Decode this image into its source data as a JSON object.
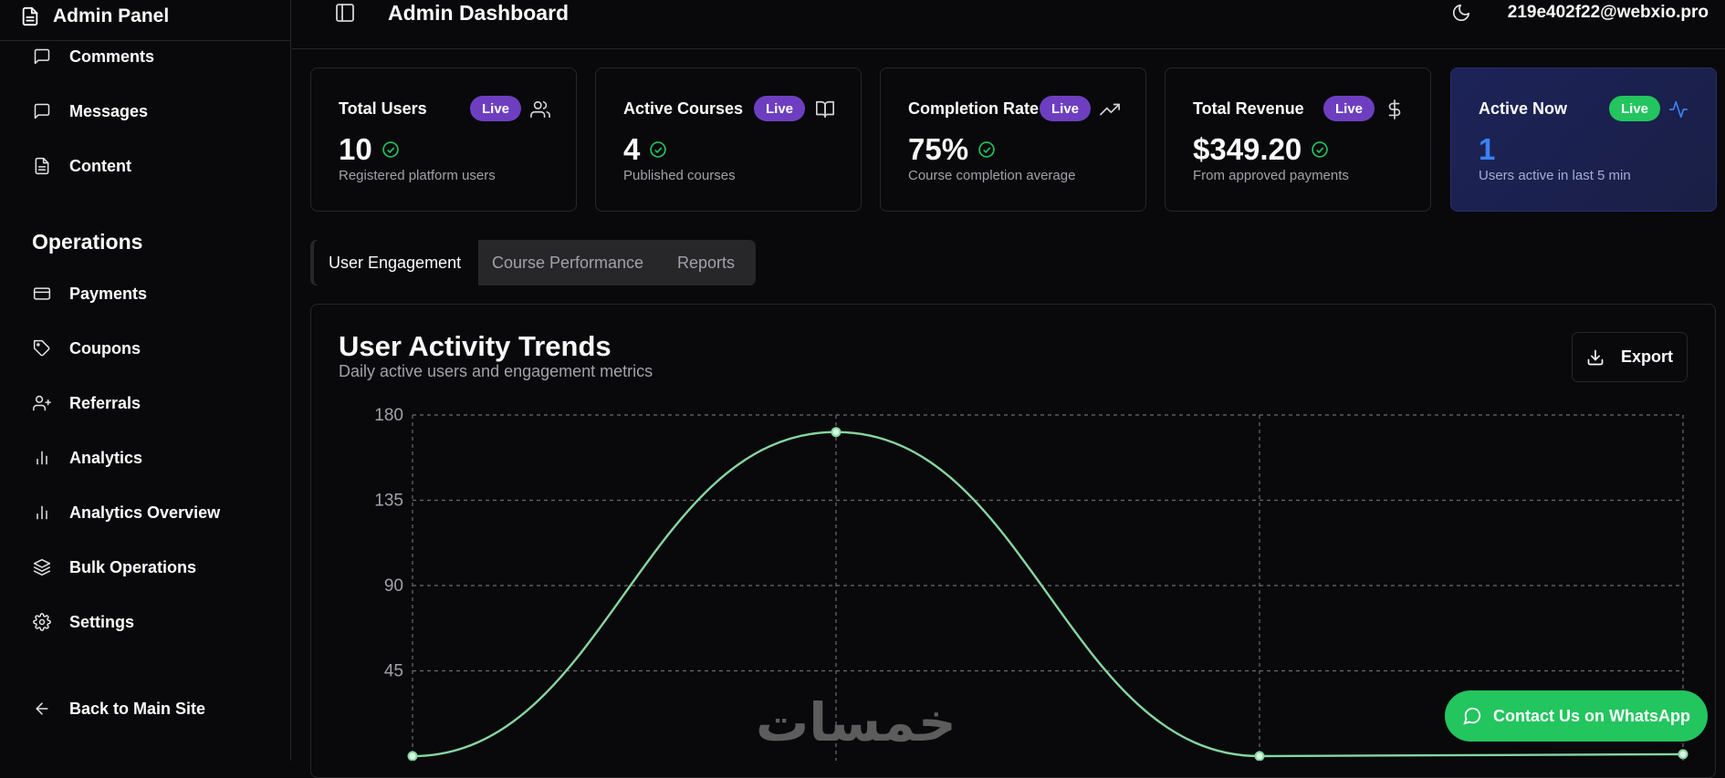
{
  "sidebar": {
    "brand": "Admin Panel",
    "items_top": [
      {
        "label": "Comments",
        "icon": "message-square-icon"
      },
      {
        "label": "Messages",
        "icon": "message-square-icon"
      },
      {
        "label": "Content",
        "icon": "file-text-icon"
      }
    ],
    "section_title": "Operations",
    "items_ops": [
      {
        "label": "Payments",
        "icon": "credit-card-icon"
      },
      {
        "label": "Coupons",
        "icon": "tag-icon"
      },
      {
        "label": "Referrals",
        "icon": "user-plus-icon"
      },
      {
        "label": "Analytics",
        "icon": "bar-chart-icon"
      },
      {
        "label": "Analytics Overview",
        "icon": "bar-chart-icon"
      },
      {
        "label": "Bulk Operations",
        "icon": "layers-icon"
      },
      {
        "label": "Settings",
        "icon": "gear-icon"
      }
    ],
    "back_label": "Back to Main Site"
  },
  "header": {
    "title": "Admin Dashboard",
    "user_email": "219e402f22@webxio.pro"
  },
  "cards": [
    {
      "title": "Total Users",
      "badge": "Live",
      "value": "10",
      "sub": "Registered platform users",
      "icon": "users-icon"
    },
    {
      "title": "Active Courses",
      "badge": "Live",
      "value": "4",
      "sub": "Published courses",
      "icon": "book-open-icon"
    },
    {
      "title": "Completion Rate",
      "badge": "Live",
      "value": "75%",
      "sub": "Course completion average",
      "icon": "trending-up-icon"
    },
    {
      "title": "Total Revenue",
      "badge": "Live",
      "value": "$349.20",
      "sub": "From approved payments",
      "icon": "dollar-icon"
    },
    {
      "title": "Active Now",
      "badge": "Live",
      "value": "1",
      "sub": "Users active in last 5 min",
      "icon": "activity-icon"
    }
  ],
  "tabs": [
    {
      "label": "User Engagement",
      "active": true
    },
    {
      "label": "Course Performance",
      "active": false
    },
    {
      "label": "Reports",
      "active": false
    }
  ],
  "panel": {
    "title": "User Activity Trends",
    "subtitle": "Daily active users and engagement metrics",
    "export_label": "Export"
  },
  "chart_data": {
    "type": "line",
    "x": [
      0,
      1,
      2,
      3
    ],
    "series": [
      {
        "values": [
          0,
          171,
          0,
          1
        ]
      }
    ],
    "ylim": [
      0,
      180
    ],
    "yticks": [
      180,
      135,
      90,
      45
    ],
    "grid": true,
    "color": "#86d6a1"
  },
  "watermark": "خمسات",
  "whatsapp_label": "Contact Us on WhatsApp",
  "colors": {
    "background": "#09090b",
    "border": "#27272a",
    "badge_purple": "#6d3fc0",
    "badge_green": "#22c55e",
    "accent_blue": "#3b82f6"
  }
}
